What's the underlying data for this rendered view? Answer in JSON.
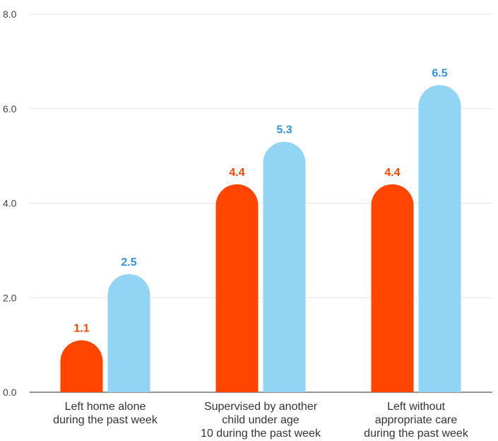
{
  "chart_data": {
    "type": "bar",
    "categories": [
      [
        "Left home alone",
        "during the past week"
      ],
      [
        "Supervised by another",
        "child under age",
        "10 during the past week"
      ],
      [
        "Left without",
        "appropriate care",
        "during the past week"
      ]
    ],
    "series": [
      {
        "values": [
          1.1,
          4.4,
          4.4
        ],
        "color": "#ff4500"
      },
      {
        "values": [
          2.5,
          5.3,
          6.5
        ],
        "color": "#92d4f4",
        "label_color": "#2f93e0"
      }
    ],
    "y_ticks": [
      "0.0",
      "2.0",
      "4.0",
      "6.0",
      "8.0"
    ],
    "ylim": [
      0,
      8
    ],
    "grid": true,
    "data_labels": true
  }
}
